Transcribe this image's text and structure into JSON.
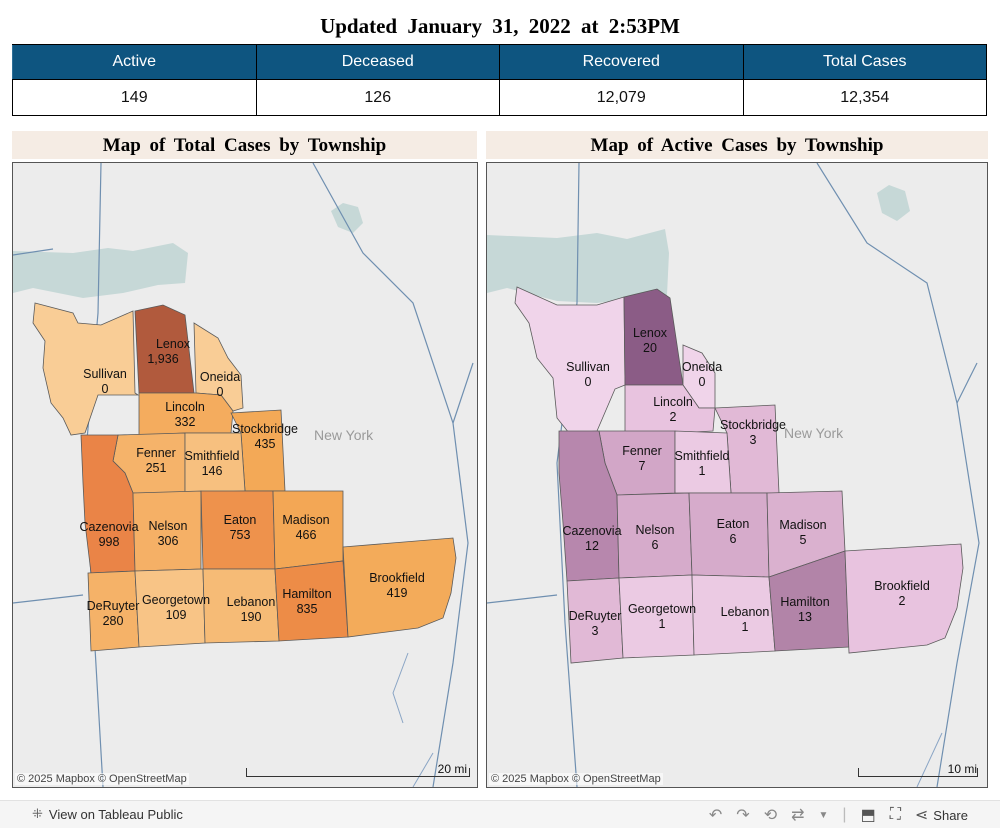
{
  "header": {
    "title": "Updated January 31, 2022 at 2:53PM"
  },
  "stats": {
    "headers": [
      "Active",
      "Deceased",
      "Recovered",
      "Total Cases"
    ],
    "values": [
      "149",
      "126",
      "12,079",
      "12,354"
    ]
  },
  "maps": [
    {
      "title": "Map of Total Cases by Township",
      "region_label": "New York",
      "attribution": "© 2025 Mapbox © OpenStreetMap",
      "scale_label": "20 mi",
      "townships": [
        {
          "name": "Lenox",
          "value": "1,936",
          "color": "#b15a3d"
        },
        {
          "name": "Sullivan",
          "value": "0",
          "color": "#f9cd96"
        },
        {
          "name": "Oneida",
          "value": "0",
          "color": "#f9cd96"
        },
        {
          "name": "Lincoln",
          "value": "332",
          "color": "#f4ac5e"
        },
        {
          "name": "Stockbridge",
          "value": "435",
          "color": "#f3a957"
        },
        {
          "name": "Fenner",
          "value": "251",
          "color": "#f5b36a"
        },
        {
          "name": "Smithfield",
          "value": "146",
          "color": "#f7c07f"
        },
        {
          "name": "Cazenovia",
          "value": "998",
          "color": "#ea8447"
        },
        {
          "name": "Nelson",
          "value": "306",
          "color": "#f5b066"
        },
        {
          "name": "Eaton",
          "value": "753",
          "color": "#ee924c"
        },
        {
          "name": "Madison",
          "value": "466",
          "color": "#f3a755"
        },
        {
          "name": "DeRuyter",
          "value": "280",
          "color": "#f5b268"
        },
        {
          "name": "Georgetown",
          "value": "109",
          "color": "#f8c486"
        },
        {
          "name": "Lebanon",
          "value": "190",
          "color": "#f6bb76"
        },
        {
          "name": "Hamilton",
          "value": "835",
          "color": "#ed8c47"
        },
        {
          "name": "Brookfield",
          "value": "419",
          "color": "#f3ab5a"
        }
      ]
    },
    {
      "title": "Map of Active Cases by Township",
      "region_label": "New York",
      "attribution": "© 2025 Mapbox © OpenStreetMap",
      "scale_label": "10 mi",
      "townships": [
        {
          "name": "Lenox",
          "value": "20",
          "color": "#8b5c86"
        },
        {
          "name": "Sullivan",
          "value": "0",
          "color": "#f0d4ea"
        },
        {
          "name": "Oneida",
          "value": "0",
          "color": "#f0d4ea"
        },
        {
          "name": "Lincoln",
          "value": "2",
          "color": "#e8c3df"
        },
        {
          "name": "Stockbridge",
          "value": "3",
          "color": "#e1b9d6"
        },
        {
          "name": "Fenner",
          "value": "7",
          "color": "#d2a6c7"
        },
        {
          "name": "Smithfield",
          "value": "1",
          "color": "#ebcae3"
        },
        {
          "name": "Cazenovia",
          "value": "12",
          "color": "#b787ad"
        },
        {
          "name": "Nelson",
          "value": "6",
          "color": "#d6abcb"
        },
        {
          "name": "Eaton",
          "value": "6",
          "color": "#d6abcb"
        },
        {
          "name": "Madison",
          "value": "5",
          "color": "#dab1cf"
        },
        {
          "name": "DeRuyter",
          "value": "3",
          "color": "#e1b9d6"
        },
        {
          "name": "Georgetown",
          "value": "1",
          "color": "#ebcae3"
        },
        {
          "name": "Lebanon",
          "value": "1",
          "color": "#ebcae3"
        },
        {
          "name": "Hamilton",
          "value": "13",
          "color": "#b284a8"
        },
        {
          "name": "Brookfield",
          "value": "2",
          "color": "#e8c3df"
        }
      ]
    }
  ],
  "footer": {
    "view_label": "View on Tableau Public",
    "share_label": "Share"
  }
}
